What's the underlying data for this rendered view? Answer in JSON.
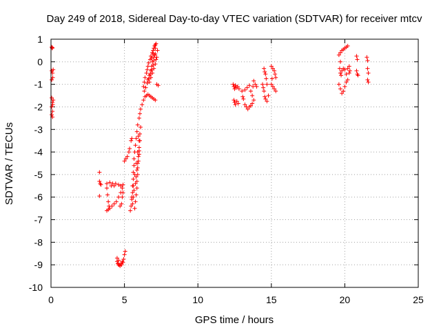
{
  "chart_data": {
    "type": "scatter",
    "title": "Day 249 of 2018, Sidereal Day-to-day VTEC variation (SDTVAR) for receiver mtcv",
    "xlabel": "GPS time / hours",
    "ylabel": "SDTVAR / TECUs",
    "xlim": [
      0,
      25
    ],
    "ylim": [
      -10,
      1
    ],
    "xticks": [
      "0",
      "5",
      "10",
      "15",
      "20",
      "25"
    ],
    "yticks": [
      "1",
      "0",
      "-1",
      "-2",
      "-3",
      "-4",
      "-5",
      "-6",
      "-7",
      "-8",
      "-9",
      "-10"
    ],
    "grid": true,
    "marker": "+",
    "color": "#ff0000",
    "series": [
      {
        "name": "SDTVAR",
        "points": [
          [
            0.05,
            0.65
          ],
          [
            0.08,
            0.6
          ],
          [
            0.1,
            0.62
          ],
          [
            0.05,
            -0.4
          ],
          [
            0.1,
            -0.5
          ],
          [
            0.12,
            -0.7
          ],
          [
            0.05,
            -0.8
          ],
          [
            0.15,
            -0.35
          ],
          [
            0.05,
            -1.6
          ],
          [
            0.1,
            -1.8
          ],
          [
            0.15,
            -1.7
          ],
          [
            0.05,
            -2.0
          ],
          [
            0.1,
            -2.2
          ],
          [
            0.05,
            -2.35
          ],
          [
            0.1,
            -2.45
          ],
          [
            0.12,
            -1.9
          ],
          [
            3.3,
            -4.9
          ],
          [
            3.3,
            -5.3
          ],
          [
            3.35,
            -5.4
          ],
          [
            3.4,
            -5.45
          ],
          [
            3.3,
            -5.95
          ],
          [
            3.8,
            -5.4
          ],
          [
            3.8,
            -5.6
          ],
          [
            3.85,
            -5.9
          ],
          [
            3.9,
            -6.2
          ],
          [
            3.95,
            -6.4
          ],
          [
            3.8,
            -6.6
          ],
          [
            3.9,
            -6.55
          ],
          [
            4.0,
            -6.5
          ],
          [
            4.15,
            -6.4
          ],
          [
            4.3,
            -6.3
          ],
          [
            4.45,
            -6.2
          ],
          [
            4.6,
            -6.0
          ],
          [
            4.75,
            -5.8
          ],
          [
            4.85,
            -5.6
          ],
          [
            4.9,
            -5.45
          ],
          [
            4.9,
            -5.8
          ],
          [
            4.85,
            -6.0
          ],
          [
            4.8,
            -6.3
          ],
          [
            4.7,
            -6.4
          ],
          [
            4.0,
            -5.35
          ],
          [
            4.2,
            -5.4
          ],
          [
            4.4,
            -5.4
          ],
          [
            4.6,
            -5.45
          ],
          [
            4.75,
            -5.5
          ],
          [
            4.3,
            -5.5
          ],
          [
            4.1,
            -5.5
          ],
          [
            4.5,
            -8.7
          ],
          [
            4.5,
            -8.85
          ],
          [
            4.55,
            -8.95
          ],
          [
            4.6,
            -9.0
          ],
          [
            4.7,
            -9.05
          ],
          [
            4.8,
            -9.0
          ],
          [
            4.9,
            -8.9
          ],
          [
            4.95,
            -8.75
          ],
          [
            5.0,
            -8.55
          ],
          [
            5.05,
            -8.4
          ],
          [
            4.6,
            -8.8
          ],
          [
            4.75,
            -8.95
          ],
          [
            4.65,
            -9.0
          ],
          [
            4.85,
            -8.85
          ],
          [
            5.0,
            -4.4
          ],
          [
            5.1,
            -4.3
          ],
          [
            5.2,
            -4.2
          ],
          [
            5.3,
            -4.0
          ],
          [
            5.35,
            -3.85
          ],
          [
            5.45,
            -3.5
          ],
          [
            5.5,
            -3.4
          ],
          [
            5.4,
            -6.6
          ],
          [
            5.45,
            -6.4
          ],
          [
            5.5,
            -6.1
          ],
          [
            5.55,
            -5.8
          ],
          [
            5.55,
            -5.5
          ],
          [
            5.6,
            -5.2
          ],
          [
            5.6,
            -4.9
          ],
          [
            5.65,
            -4.6
          ],
          [
            5.65,
            -4.3
          ],
          [
            5.7,
            -4.0
          ],
          [
            5.75,
            -3.7
          ],
          [
            5.8,
            -3.4
          ],
          [
            5.85,
            -3.1
          ],
          [
            5.9,
            -2.8
          ],
          [
            6.0,
            -2.5
          ],
          [
            6.05,
            -2.3
          ],
          [
            6.1,
            -2.1
          ],
          [
            6.2,
            -1.9
          ],
          [
            6.3,
            -1.7
          ],
          [
            6.4,
            -1.55
          ],
          [
            6.5,
            -1.5
          ],
          [
            6.6,
            -1.45
          ],
          [
            6.7,
            -1.5
          ],
          [
            6.8,
            -1.55
          ],
          [
            6.9,
            -1.6
          ],
          [
            7.0,
            -1.65
          ],
          [
            7.1,
            -1.7
          ],
          [
            5.7,
            -6.5
          ],
          [
            5.75,
            -6.2
          ],
          [
            5.8,
            -5.9
          ],
          [
            5.85,
            -5.6
          ],
          [
            5.85,
            -5.3
          ],
          [
            5.9,
            -5.0
          ],
          [
            5.9,
            -4.7
          ],
          [
            5.95,
            -4.4
          ],
          [
            6.0,
            -4.1
          ],
          [
            6.0,
            -3.8
          ],
          [
            6.05,
            -3.5
          ],
          [
            6.05,
            -3.2
          ],
          [
            6.1,
            -2.9
          ],
          [
            5.6,
            -6.0
          ],
          [
            5.65,
            -5.7
          ],
          [
            5.75,
            -5.4
          ],
          [
            5.8,
            -5.1
          ],
          [
            5.85,
            -4.8
          ],
          [
            5.9,
            -4.5
          ],
          [
            5.95,
            -4.2
          ],
          [
            6.0,
            -3.95
          ],
          [
            5.55,
            -6.3
          ],
          [
            5.5,
            -6.0
          ],
          [
            5.6,
            -5.5
          ],
          [
            5.7,
            -5.0
          ],
          [
            5.8,
            -4.5
          ],
          [
            5.9,
            -4.0
          ],
          [
            6.0,
            -3.5
          ],
          [
            5.95,
            -3.3
          ],
          [
            6.3,
            -1.1
          ],
          [
            6.35,
            -0.9
          ],
          [
            6.4,
            -0.7
          ],
          [
            6.5,
            -0.5
          ],
          [
            6.55,
            -0.35
          ],
          [
            6.6,
            -0.2
          ],
          [
            6.65,
            -0.05
          ],
          [
            6.75,
            0.1
          ],
          [
            6.8,
            0.25
          ],
          [
            6.9,
            0.4
          ],
          [
            6.95,
            0.5
          ],
          [
            7.0,
            0.6
          ],
          [
            7.05,
            0.7
          ],
          [
            7.1,
            0.75
          ],
          [
            7.15,
            0.8
          ],
          [
            6.6,
            -0.8
          ],
          [
            6.7,
            -0.6
          ],
          [
            6.8,
            -0.4
          ],
          [
            6.85,
            -0.2
          ],
          [
            6.9,
            0.0
          ],
          [
            7.0,
            0.2
          ],
          [
            7.05,
            0.3
          ],
          [
            7.1,
            0.35
          ],
          [
            7.15,
            0.1
          ],
          [
            7.1,
            -0.1
          ],
          [
            7.0,
            -0.3
          ],
          [
            6.9,
            -0.5
          ],
          [
            6.8,
            -0.7
          ],
          [
            6.7,
            -0.9
          ],
          [
            7.2,
            0.2
          ],
          [
            7.25,
            0.5
          ],
          [
            7.2,
            -1.0
          ],
          [
            7.3,
            -1.05
          ],
          [
            7.0,
            0.05
          ],
          [
            6.95,
            -0.15
          ],
          [
            6.85,
            -0.35
          ],
          [
            6.75,
            -0.55
          ],
          [
            6.65,
            -0.75
          ],
          [
            6.55,
            -0.95
          ],
          [
            6.45,
            -1.15
          ],
          [
            6.35,
            -1.3
          ],
          [
            7.1,
            0.6
          ],
          [
            6.95,
            0.35
          ],
          [
            6.85,
            0.15
          ],
          [
            12.4,
            -1.0
          ],
          [
            12.45,
            -1.1
          ],
          [
            12.5,
            -1.2
          ],
          [
            12.55,
            -1.05
          ],
          [
            12.6,
            -1.15
          ],
          [
            12.7,
            -1.1
          ],
          [
            12.8,
            -1.2
          ],
          [
            12.45,
            -1.7
          ],
          [
            12.5,
            -1.8
          ],
          [
            12.55,
            -1.9
          ],
          [
            12.65,
            -1.75
          ],
          [
            12.75,
            -1.85
          ],
          [
            13.0,
            -1.3
          ],
          [
            13.05,
            -1.55
          ],
          [
            13.1,
            -1.65
          ],
          [
            13.2,
            -1.9
          ],
          [
            13.3,
            -2.0
          ],
          [
            13.4,
            -2.1
          ],
          [
            13.5,
            -2.0
          ],
          [
            13.6,
            -1.95
          ],
          [
            13.7,
            -1.85
          ],
          [
            13.2,
            -1.25
          ],
          [
            13.35,
            -1.15
          ],
          [
            13.5,
            -1.05
          ],
          [
            13.6,
            -1.3
          ],
          [
            13.7,
            -1.5
          ],
          [
            13.8,
            -1.7
          ],
          [
            13.75,
            -1.1
          ],
          [
            13.8,
            -0.85
          ],
          [
            13.9,
            -1.0
          ],
          [
            14.0,
            -1.1
          ],
          [
            14.5,
            -0.3
          ],
          [
            14.55,
            -0.45
          ],
          [
            14.6,
            -0.55
          ],
          [
            14.4,
            -1.0
          ],
          [
            14.45,
            -1.15
          ],
          [
            14.5,
            -1.3
          ],
          [
            14.55,
            -1.55
          ],
          [
            14.6,
            -1.65
          ],
          [
            14.7,
            -1.75
          ],
          [
            14.8,
            -1.5
          ],
          [
            14.7,
            -1.0
          ],
          [
            14.65,
            -0.75
          ],
          [
            15.0,
            -0.2
          ],
          [
            15.1,
            -0.3
          ],
          [
            15.2,
            -0.4
          ],
          [
            15.25,
            -0.55
          ],
          [
            15.3,
            -0.7
          ],
          [
            15.0,
            -1.0
          ],
          [
            15.1,
            -1.1
          ],
          [
            15.2,
            -1.2
          ],
          [
            15.3,
            -1.3
          ],
          [
            15.05,
            -0.75
          ],
          [
            19.6,
            0.3
          ],
          [
            19.7,
            0.4
          ],
          [
            19.8,
            0.5
          ],
          [
            19.9,
            0.55
          ],
          [
            20.0,
            0.6
          ],
          [
            20.1,
            0.65
          ],
          [
            20.2,
            0.7
          ],
          [
            19.65,
            -0.3
          ],
          [
            19.7,
            -0.5
          ],
          [
            19.75,
            -0.6
          ],
          [
            19.8,
            -0.4
          ],
          [
            19.9,
            -0.3
          ],
          [
            20.0,
            -0.35
          ],
          [
            20.1,
            -0.55
          ],
          [
            20.2,
            -0.8
          ],
          [
            20.3,
            -0.5
          ],
          [
            20.35,
            -0.4
          ],
          [
            19.6,
            -1.0
          ],
          [
            19.7,
            -1.2
          ],
          [
            19.8,
            -1.4
          ],
          [
            19.9,
            -1.3
          ],
          [
            20.0,
            -1.1
          ],
          [
            20.1,
            -0.9
          ],
          [
            19.7,
            0.0
          ],
          [
            20.2,
            -0.3
          ],
          [
            20.3,
            -0.2
          ],
          [
            20.8,
            0.25
          ],
          [
            20.85,
            0.1
          ],
          [
            20.8,
            -0.4
          ],
          [
            20.85,
            -0.55
          ],
          [
            20.9,
            -0.6
          ],
          [
            21.5,
            0.2
          ],
          [
            21.55,
            0.05
          ],
          [
            21.55,
            -0.3
          ],
          [
            21.6,
            -0.5
          ],
          [
            21.55,
            -0.8
          ],
          [
            21.6,
            -0.9
          ]
        ]
      }
    ]
  }
}
